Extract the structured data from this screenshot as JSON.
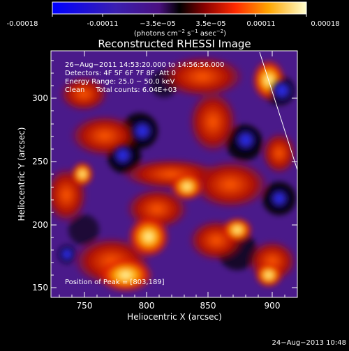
{
  "colorbar": {
    "tick_labels": [
      "-0.00018",
      "-0.00011",
      "−3.5e−05",
      "3.5e−05",
      "0.00011",
      "0.00018"
    ],
    "units_main": "(photons cm",
    "units_exp1": "−2",
    "units_mid": " s",
    "units_exp2": "−1",
    "units_tail": " asec",
    "units_exp3": "−2",
    "units_close": ")"
  },
  "image": {
    "title": "Reconstructed RHESSI Image",
    "info": {
      "time": "26−Aug−2011 14:53:20.000 to 14:56:56.000",
      "detectors": "Detectors: 4F 5F 6F 7F 8F, Att 0",
      "energy": "Energy Range: 25.0 − 50.0 keV",
      "clean": "Clean     Total counts: 6.04E+03"
    },
    "peak_label": "Position of Peak = [803,189]",
    "xlabel": "Heliocentric X (arcsec)",
    "ylabel": "Heliocentric Y (arcsec)",
    "x_ticks": [
      "750",
      "800",
      "850",
      "900"
    ],
    "y_ticks": [
      "150",
      "200",
      "250",
      "300"
    ]
  },
  "footer": {
    "date": "24−Aug−2013 10:48"
  },
  "colors": {
    "background": "#000000",
    "text": "#ffffff",
    "limb_line": "#ffffff"
  }
}
